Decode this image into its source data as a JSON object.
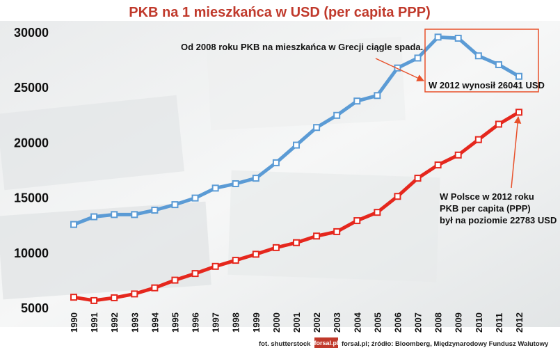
{
  "chart_data": {
    "type": "line",
    "title": "PKB na 1 mieszkańca w USD (per capita PPP)",
    "xlabel": "",
    "ylabel": "",
    "ylim": [
      5000,
      30000
    ],
    "yticks": [
      "30000",
      "25000",
      "20000",
      "15000",
      "10000",
      "5000"
    ],
    "x": [
      "1990",
      "1991",
      "1992",
      "1993",
      "1994",
      "1995",
      "1996",
      "1997",
      "1998",
      "1999",
      "2000",
      "2001",
      "2002",
      "2003",
      "2004",
      "2005",
      "2006",
      "2007",
      "2008",
      "2009",
      "2010",
      "2011",
      "2012"
    ],
    "series": [
      {
        "name": "",
        "color": "#5b9bd5",
        "values": [
          12600,
          13300,
          13500,
          13500,
          13900,
          14400,
          15000,
          15900,
          16300,
          16800,
          18200,
          19800,
          21400,
          22500,
          23800,
          24300,
          26800,
          27700,
          29600,
          29500,
          27900,
          27100,
          26041
        ]
      },
      {
        "name": "",
        "color": "#e5271d",
        "values": [
          6000,
          5700,
          5950,
          6300,
          6850,
          7550,
          8150,
          8800,
          9350,
          9900,
          10500,
          10950,
          11550,
          11950,
          12950,
          13700,
          15150,
          16800,
          18000,
          18900,
          20300,
          21700,
          22783
        ]
      }
    ],
    "grid": false,
    "legend": "none"
  },
  "annotations": {
    "greece_note": "Od 2008 roku PKB na mieszkańca w Grecji ciągle spada.",
    "greece_box_label": "W 2012 wynosił 26041 USD",
    "poland_line1": "W Polsce w 2012 roku",
    "poland_line2": "PKB per capita (PPP)",
    "poland_line3": "był na poziomie 22783 USD"
  },
  "footer": {
    "photo_credit": "fot. shutterstock",
    "logo_text": "forsal.pl",
    "source": "forsal.pl; źródło: Bloomberg, Międzynarodowy Fundusz Walutowy"
  },
  "colors": {
    "title": "#c0392b",
    "annotation_box": "#e8502a",
    "arrow": "#e8502a",
    "logo_bg": "#c0392b"
  }
}
